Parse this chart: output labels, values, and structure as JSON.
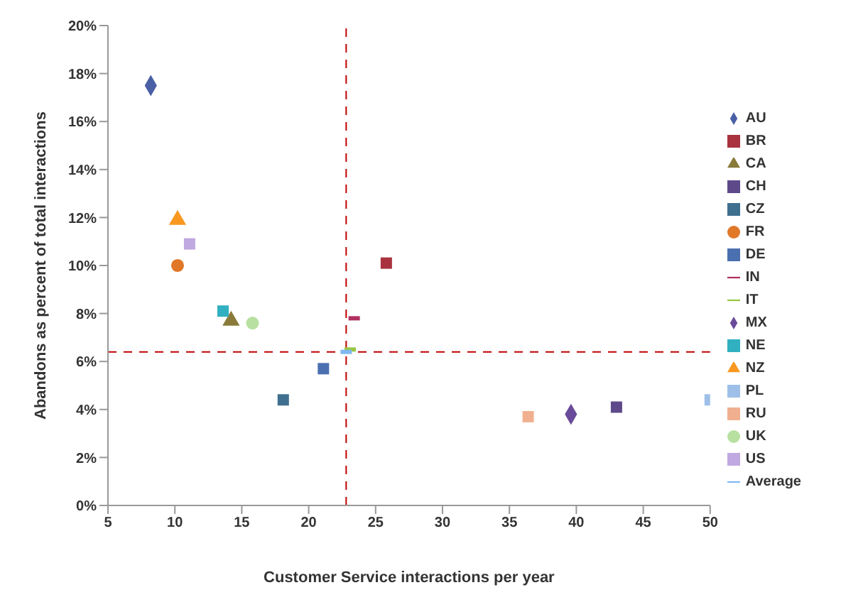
{
  "chart_data": {
    "type": "scatter",
    "xlabel": "Customer Service interactions per year",
    "ylabel": "Abandons as percent of total interactions",
    "xlim": [
      5,
      50
    ],
    "xticks": [
      5,
      10,
      15,
      20,
      25,
      30,
      35,
      40,
      45,
      50
    ],
    "ylim": [
      0,
      20
    ],
    "yticks": [
      {
        "value": 0,
        "label": "0%"
      },
      {
        "value": 2,
        "label": "2%"
      },
      {
        "value": 4,
        "label": "4%"
      },
      {
        "value": 6,
        "label": "6%"
      },
      {
        "value": 8,
        "label": "8%"
      },
      {
        "value": 10,
        "label": "10%"
      },
      {
        "value": 12,
        "label": "12%"
      },
      {
        "value": 14,
        "label": "14%"
      },
      {
        "value": 16,
        "label": "16%"
      },
      {
        "value": 18,
        "label": "18%"
      },
      {
        "value": 20,
        "label": "20%"
      }
    ],
    "grid": false,
    "legend": "right",
    "ref_lines": [
      {
        "axis": "x",
        "value": 22.8,
        "color": "#c00000",
        "line_style": "dashed"
      },
      {
        "axis": "y",
        "value": 6.4,
        "color": "#c00000",
        "line_style": "dashed"
      }
    ],
    "series": [
      {
        "name": "AU",
        "color": "#4a5fa5",
        "marker": "diamond",
        "x": [
          8.2
        ],
        "values": [
          17.5
        ]
      },
      {
        "name": "BR",
        "color": "#a8323e",
        "marker": "square",
        "x": [
          25.8
        ],
        "values": [
          10.1
        ]
      },
      {
        "name": "CA",
        "color": "#8a7a3a",
        "marker": "triangle",
        "x": [
          14.2
        ],
        "values": [
          7.7
        ]
      },
      {
        "name": "CH",
        "color": "#5e4a8a",
        "marker": "square",
        "x": [
          43
        ],
        "values": [
          4.1
        ]
      },
      {
        "name": "CZ",
        "color": "#3f6f8f",
        "marker": "square",
        "x": [
          18.1
        ],
        "values": [
          4.4
        ]
      },
      {
        "name": "FR",
        "color": "#e07828",
        "marker": "circle",
        "x": [
          10.2
        ],
        "values": [
          10
        ]
      },
      {
        "name": "DE",
        "color": "#4a70b0",
        "marker": "square",
        "x": [
          21.1
        ],
        "values": [
          5.7
        ]
      },
      {
        "name": "IN",
        "color": "#b03060",
        "x": [
          23.4
        ],
        "values": [
          7.8
        ]
      },
      {
        "name": "IT",
        "color": "#98c840",
        "x": [
          23.1
        ],
        "values": [
          6.5
        ]
      },
      {
        "name": "MX",
        "color": "#6a4a9a",
        "marker": "diamond",
        "x": [
          39.6
        ],
        "values": [
          3.8
        ]
      },
      {
        "name": "NE",
        "color": "#30b0c0",
        "marker": "square",
        "x": [
          13.6
        ],
        "values": [
          8.1
        ]
      },
      {
        "name": "NZ",
        "color": "#f89820",
        "marker": "triangle",
        "x": [
          10.2
        ],
        "values": [
          11.9
        ]
      },
      {
        "name": "PL",
        "color": "#9ec0e8",
        "marker": "square",
        "x": [
          50
        ],
        "values": [
          4.4
        ]
      },
      {
        "name": "RU",
        "color": "#f0b090",
        "marker": "square",
        "x": [
          36.4
        ],
        "values": [
          3.7
        ]
      },
      {
        "name": "UK",
        "color": "#b8e0a0",
        "marker": "circle",
        "x": [
          15.8
        ],
        "values": [
          7.6
        ]
      },
      {
        "name": "US",
        "color": "#c0a8e0",
        "marker": "square",
        "x": [
          11.1
        ],
        "values": [
          10.9
        ]
      },
      {
        "name": "Average",
        "color": "#80b8f0",
        "x": [
          22.8
        ],
        "values": [
          6.4
        ]
      }
    ]
  }
}
